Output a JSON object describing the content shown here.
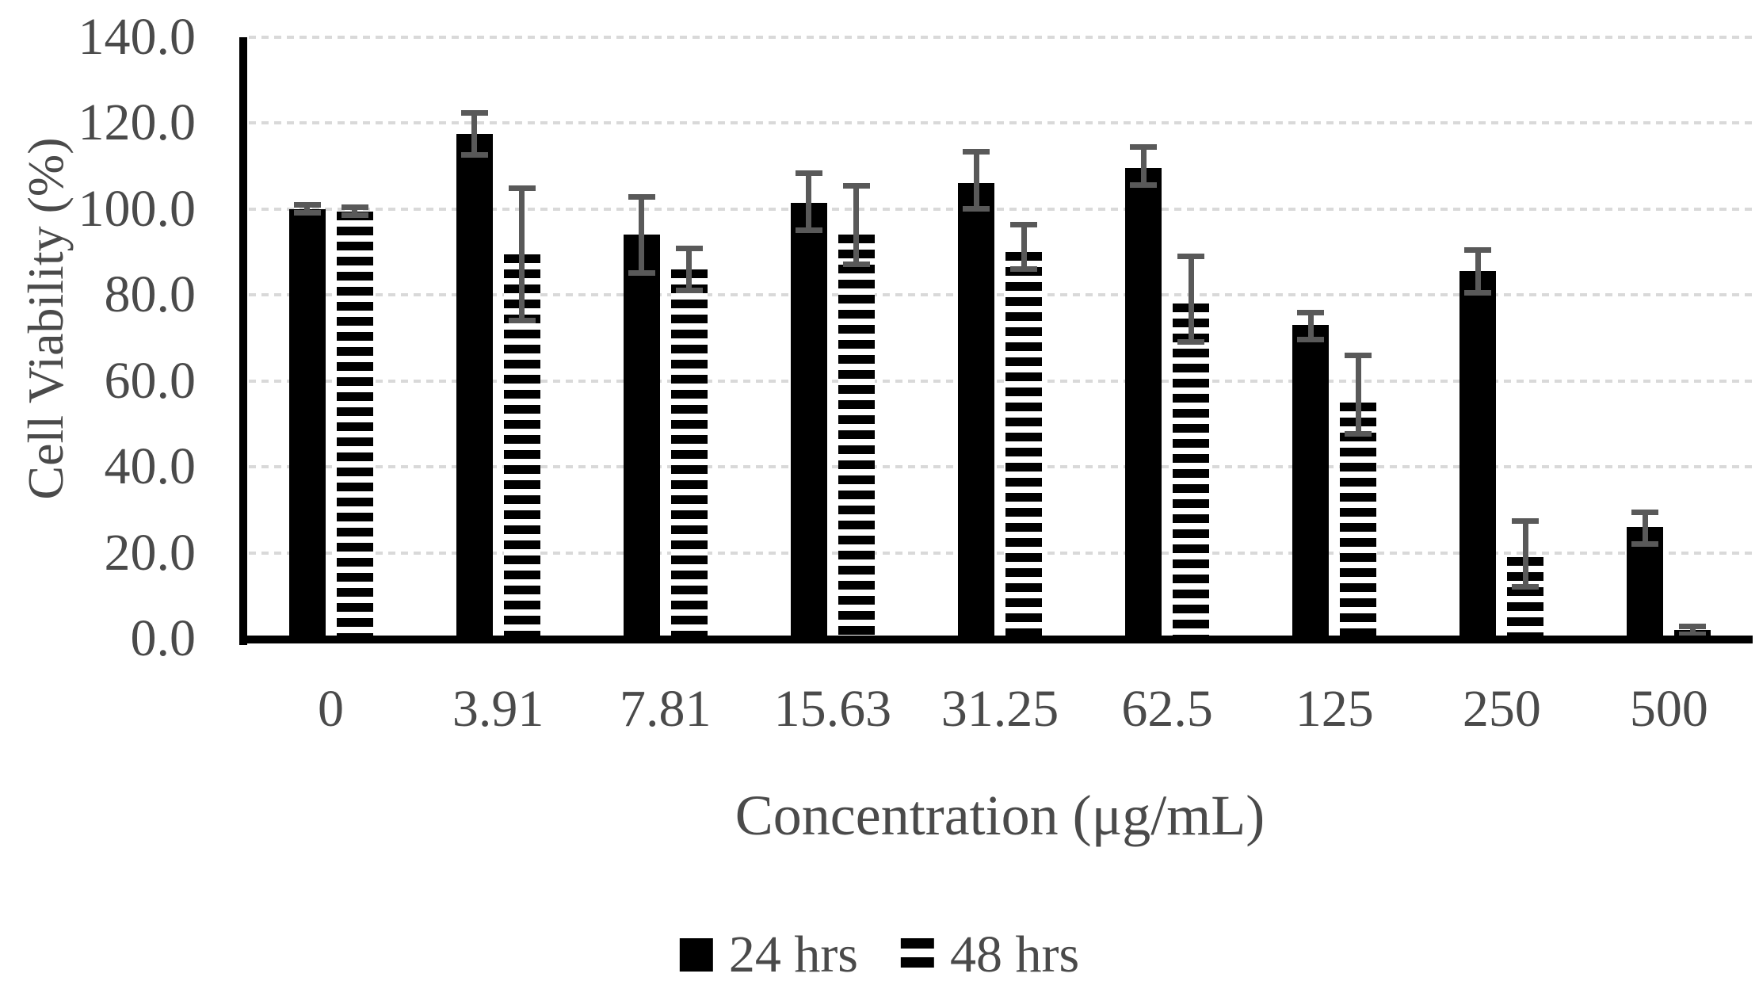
{
  "chart_data": {
    "type": "bar",
    "title": "",
    "xlabel": "Concentration (μg/mL)",
    "ylabel": "Cell Viability (%)",
    "categories": [
      "0",
      "3.91",
      "7.81",
      "15.63",
      "31.25",
      "62.5",
      "125",
      "250",
      "500"
    ],
    "series": [
      {
        "name": "24 hrs",
        "pattern": "solid-black",
        "values": [
          100.0,
          117.5,
          94.0,
          101.5,
          106.0,
          109.5,
          73.0,
          85.5,
          26.0
        ],
        "error_up": [
          1.0,
          5.0,
          9.0,
          7.0,
          7.5,
          5.0,
          3.0,
          5.0,
          3.5
        ],
        "error_down": [
          1.0,
          5.0,
          9.0,
          6.5,
          6.0,
          4.0,
          3.5,
          5.0,
          4.0
        ]
      },
      {
        "name": "48 hrs",
        "pattern": "horizontal-stripes",
        "values": [
          99.5,
          89.5,
          86.0,
          94.0,
          90.0,
          78.0,
          55.0,
          19.0,
          2.0
        ],
        "error_up": [
          1.0,
          15.5,
          5.0,
          11.5,
          6.5,
          11.0,
          11.0,
          8.5,
          1.0
        ],
        "error_down": [
          1.0,
          15.5,
          5.0,
          7.0,
          4.0,
          9.0,
          7.5,
          7.0,
          1.0
        ]
      }
    ],
    "ylim": [
      0,
      140
    ],
    "ytick_step": 20,
    "ytick_labels": [
      "0.0",
      "20.0",
      "40.0",
      "60.0",
      "80.0",
      "100.0",
      "120.0",
      "140.0"
    ],
    "grid": true,
    "gridline_style": "dotted",
    "legend_position": "bottom-center",
    "colors": {
      "bar": "#000000",
      "error_bar": "#595959",
      "gridline": "#d9d9d9",
      "axis": "#000000",
      "text": "#4a4a4a",
      "background": "#ffffff"
    }
  }
}
